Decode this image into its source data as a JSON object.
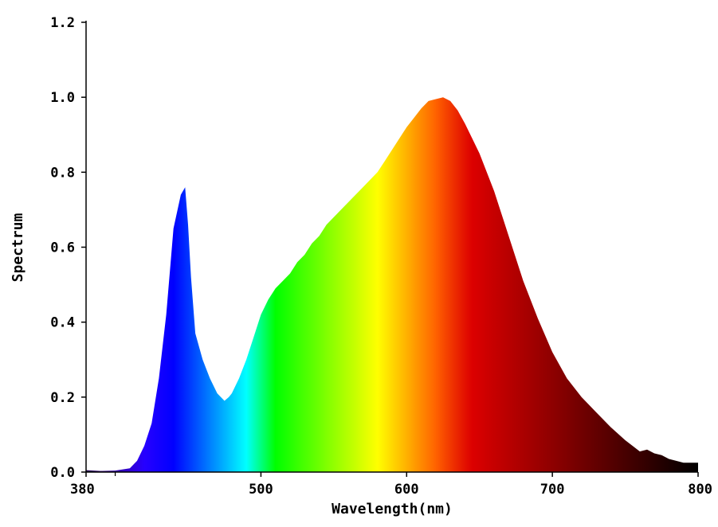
{
  "chart_data": {
    "type": "area",
    "xlabel": "Wavelength(nm)",
    "ylabel": "Spectrum",
    "xlim": [
      380,
      800
    ],
    "ylim": [
      0,
      1.2
    ],
    "x_ticks": [
      {
        "value": 380,
        "label": "380"
      },
      {
        "value": 500,
        "label": "500"
      },
      {
        "value": 600,
        "label": "600"
      },
      {
        "value": 700,
        "label": "700"
      },
      {
        "value": 800,
        "label": "800"
      }
    ],
    "x_minor_ticks": [
      400
    ],
    "y_ticks": [
      {
        "value": 0.0,
        "label": "0.0"
      },
      {
        "value": 0.2,
        "label": "0.2"
      },
      {
        "value": 0.4,
        "label": "0.4"
      },
      {
        "value": 0.6,
        "label": "0.6"
      },
      {
        "value": 0.8,
        "label": "0.8"
      },
      {
        "value": 1.0,
        "label": "1.0"
      },
      {
        "value": 1.2,
        "label": "1.2"
      }
    ],
    "fill": "wavelength-colored spectrum",
    "series": [
      {
        "x": [
          380,
          390,
          400,
          410,
          415,
          420,
          425,
          430,
          435,
          440,
          445,
          448,
          450,
          452,
          455,
          460,
          465,
          470,
          475,
          478,
          480,
          485,
          490,
          495,
          500,
          505,
          510,
          515,
          520,
          525,
          530,
          535,
          540,
          545,
          550,
          560,
          570,
          580,
          585,
          590,
          595,
          600,
          605,
          610,
          615,
          620,
          625,
          630,
          635,
          640,
          645,
          650,
          660,
          670,
          680,
          690,
          700,
          710,
          720,
          730,
          740,
          750,
          755,
          760,
          765,
          770,
          775,
          780,
          790,
          800
        ],
        "y": [
          0.005,
          0.003,
          0.004,
          0.01,
          0.03,
          0.07,
          0.13,
          0.25,
          0.42,
          0.65,
          0.74,
          0.76,
          0.66,
          0.52,
          0.37,
          0.3,
          0.25,
          0.21,
          0.19,
          0.2,
          0.21,
          0.25,
          0.3,
          0.36,
          0.42,
          0.46,
          0.49,
          0.51,
          0.53,
          0.56,
          0.58,
          0.61,
          0.63,
          0.66,
          0.68,
          0.72,
          0.76,
          0.8,
          0.83,
          0.86,
          0.89,
          0.92,
          0.945,
          0.97,
          0.99,
          0.995,
          1.0,
          0.99,
          0.965,
          0.93,
          0.89,
          0.85,
          0.75,
          0.63,
          0.51,
          0.41,
          0.32,
          0.25,
          0.2,
          0.16,
          0.12,
          0.085,
          0.07,
          0.055,
          0.06,
          0.05,
          0.045,
          0.035,
          0.025,
          0.025
        ]
      }
    ]
  }
}
